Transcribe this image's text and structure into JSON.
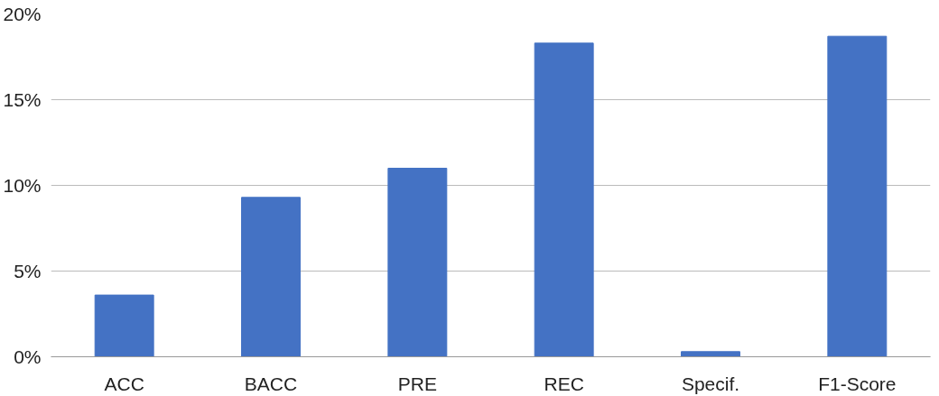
{
  "chart_data": {
    "type": "bar",
    "categories": [
      "ACC",
      "BACC",
      "PRE",
      "REC",
      "Specif.",
      "F1-Score"
    ],
    "values": [
      3.6,
      9.3,
      11.0,
      18.3,
      0.3,
      18.7
    ],
    "color": "#4472c4",
    "ylim": [
      0,
      20
    ],
    "yticks": [
      {
        "value": 0,
        "label": "0%"
      },
      {
        "value": 5,
        "label": "5%"
      },
      {
        "value": 10,
        "label": "10%"
      },
      {
        "value": 15,
        "label": "15%"
      },
      {
        "value": 20,
        "label": "20%"
      }
    ],
    "grid": "y"
  }
}
